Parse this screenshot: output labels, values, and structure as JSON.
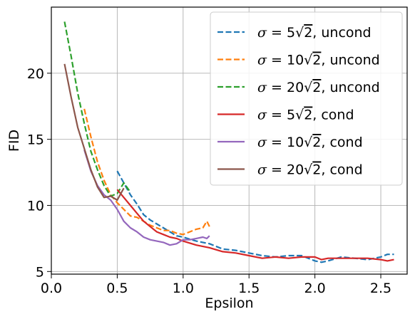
{
  "chart_data": {
    "type": "line",
    "xlabel": "Epsilon",
    "ylabel": "FID",
    "xlim": [
      0.0,
      2.7
    ],
    "ylim": [
      4.8,
      25.0
    ],
    "xticks": [
      "0.0",
      "0.5",
      "1.0",
      "1.5",
      "2.0",
      "2.5"
    ],
    "yticks": [
      "5",
      "10",
      "15",
      "20"
    ],
    "grid": true,
    "legend_position": "top-right",
    "series": [
      {
        "name": "σ = 5√2, uncond",
        "sigma": "5",
        "cond": ", uncond",
        "color": "#1f77b4",
        "dashed": true,
        "x": [
          0.5,
          0.55,
          0.6,
          0.65,
          0.7,
          0.75,
          0.8,
          0.85,
          0.9,
          0.95,
          1.0,
          1.1,
          1.2,
          1.3,
          1.4,
          1.5,
          1.6,
          1.7,
          1.8,
          1.9,
          2.0,
          2.05,
          2.1,
          2.2,
          2.3,
          2.4,
          2.5,
          2.55,
          2.6
        ],
        "y": [
          12.6,
          11.7,
          10.8,
          10.1,
          9.3,
          8.9,
          8.6,
          8.3,
          8.0,
          7.7,
          7.6,
          7.3,
          7.1,
          6.7,
          6.6,
          6.4,
          6.2,
          6.1,
          6.2,
          6.2,
          5.8,
          5.7,
          5.8,
          6.1,
          6.0,
          5.9,
          6.1,
          6.3,
          6.3
        ]
      },
      {
        "name": "σ = 10√2, uncond",
        "sigma": "10",
        "cond": ", uncond",
        "color": "#ff7f0e",
        "dashed": true,
        "x": [
          0.25,
          0.3,
          0.35,
          0.4,
          0.45,
          0.5,
          0.55,
          0.6,
          0.65,
          0.7,
          0.75,
          0.8,
          0.85,
          0.9,
          0.95,
          1.0,
          1.05,
          1.1,
          1.15,
          1.18,
          1.2
        ],
        "y": [
          17.3,
          15.2,
          13.3,
          11.9,
          10.8,
          10.2,
          9.7,
          9.2,
          9.1,
          8.8,
          8.5,
          8.3,
          8.1,
          8.1,
          7.9,
          7.8,
          8.0,
          8.2,
          8.3,
          8.8,
          8.4
        ]
      },
      {
        "name": "σ = 20√2, uncond",
        "sigma": "20",
        "cond": ", uncond",
        "color": "#2ca02c",
        "dashed": true,
        "x": [
          0.1,
          0.15,
          0.2,
          0.25,
          0.3,
          0.35,
          0.4,
          0.45,
          0.5,
          0.55,
          0.6
        ],
        "y": [
          23.9,
          21.3,
          18.5,
          16.2,
          14.1,
          12.7,
          11.5,
          10.7,
          10.9,
          11.7,
          11.0
        ]
      },
      {
        "name": "σ = 5√2, cond",
        "sigma": "5",
        "cond": ", cond",
        "color": "#d62728",
        "dashed": false,
        "x": [
          0.5,
          0.55,
          0.6,
          0.65,
          0.7,
          0.75,
          0.8,
          0.85,
          0.9,
          0.95,
          1.0,
          1.1,
          1.2,
          1.3,
          1.4,
          1.5,
          1.6,
          1.7,
          1.8,
          1.9,
          2.0,
          2.05,
          2.1,
          2.2,
          2.3,
          2.4,
          2.5,
          2.55,
          2.6
        ],
        "y": [
          11.2,
          10.6,
          10.0,
          9.4,
          8.8,
          8.4,
          8.0,
          7.8,
          7.6,
          7.5,
          7.3,
          7.0,
          6.8,
          6.5,
          6.4,
          6.2,
          6.0,
          6.1,
          6.0,
          6.1,
          6.1,
          5.9,
          6.0,
          6.0,
          6.0,
          6.0,
          5.9,
          5.8,
          5.9
        ]
      },
      {
        "name": "σ = 10√2, cond",
        "sigma": "10",
        "cond": ", cond",
        "color": "#9467bd",
        "dashed": false,
        "x": [
          0.25,
          0.3,
          0.35,
          0.4,
          0.45,
          0.5,
          0.55,
          0.6,
          0.65,
          0.7,
          0.75,
          0.8,
          0.85,
          0.9,
          0.95,
          1.0,
          1.05,
          1.1,
          1.15,
          1.18,
          1.2
        ],
        "y": [
          14.2,
          12.6,
          11.5,
          10.8,
          10.4,
          9.7,
          8.8,
          8.3,
          8.0,
          7.6,
          7.4,
          7.3,
          7.2,
          7.0,
          7.1,
          7.4,
          7.4,
          7.5,
          7.6,
          7.5,
          7.7
        ]
      },
      {
        "name": "σ = 20√2, cond",
        "sigma": "20",
        "cond": ", cond",
        "color": "#8c564b",
        "dashed": false,
        "x": [
          0.1,
          0.15,
          0.2,
          0.25,
          0.3,
          0.35,
          0.4,
          0.45,
          0.5,
          0.55
        ],
        "y": [
          20.7,
          18.2,
          15.9,
          14.3,
          12.7,
          11.4,
          10.6,
          10.7,
          10.4,
          11.3
        ]
      }
    ]
  }
}
